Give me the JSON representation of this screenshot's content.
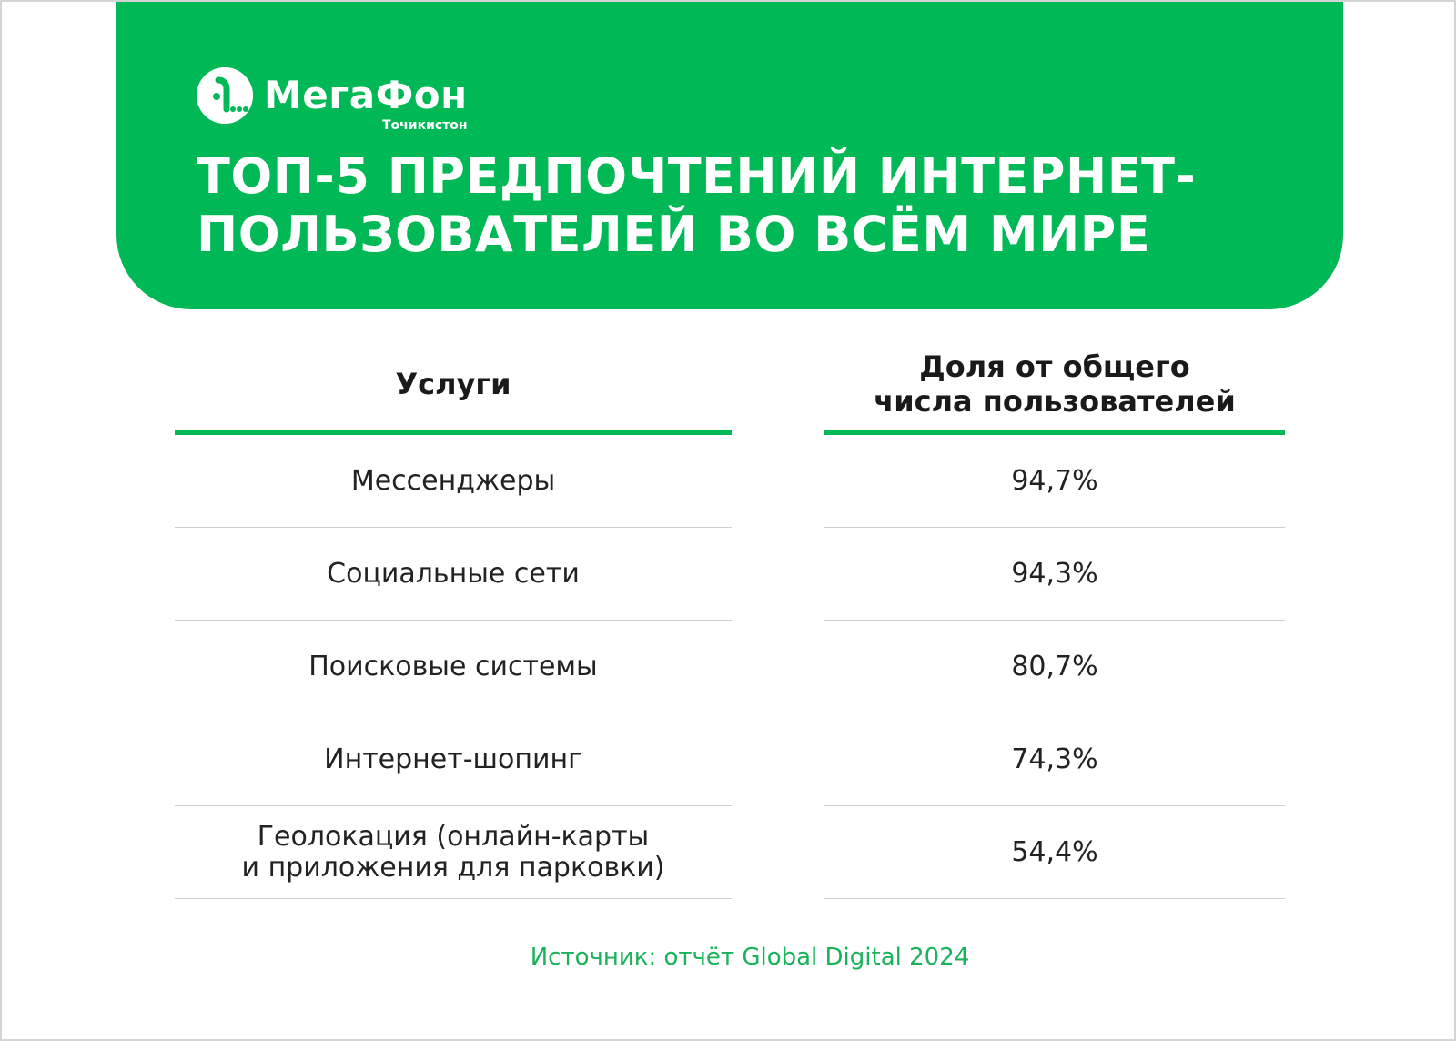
{
  "header": {
    "brand": "МегаФон",
    "region": "Точикистон",
    "title_lines": [
      "ТОП-5 ПРЕДПОЧТЕНИЙ ИНТЕРНЕТ-",
      "ПОЛЬЗОВАТЕЛЕЙ ВО ВСЁМ МИРЕ"
    ],
    "logo_icon": "megafon-logo-icon"
  },
  "table": {
    "col1_header": "Услуги",
    "col2_header_lines": [
      "Доля от общего",
      "числа пользователей"
    ],
    "rows": [
      {
        "service_lines": [
          "Мессенджеры"
        ],
        "share": "94,7%"
      },
      {
        "service_lines": [
          "Социальные сети"
        ],
        "share": "94,3%"
      },
      {
        "service_lines": [
          "Поисковые системы"
        ],
        "share": "80,7%"
      },
      {
        "service_lines": [
          "Интернет-шопинг"
        ],
        "share": "74,3%"
      },
      {
        "service_lines": [
          "Геолокация (онлайн-карты",
          "и приложения для парковки)"
        ],
        "share": "54,4%"
      }
    ]
  },
  "footer": {
    "source": "Источник: отчёт Global Digital 2024"
  },
  "colors": {
    "brand_green": "#00b956",
    "source_green": "#19b35a",
    "text": "#222222",
    "divider": "#cfcfcf"
  }
}
